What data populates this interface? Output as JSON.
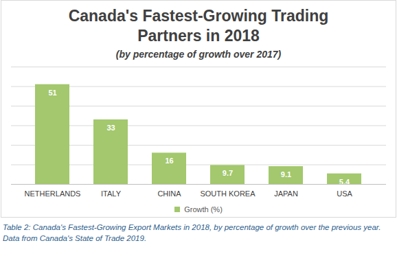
{
  "chart_data": {
    "type": "bar",
    "title": "Canada's Fastest-Growing Trading Partners in 2018",
    "subtitle": "(by percentage of growth over 2017)",
    "categories": [
      "NETHERLANDS",
      "ITALY",
      "CHINA",
      "SOUTH KOREA",
      "JAPAN",
      "USA"
    ],
    "series": [
      {
        "name": "Growth (%)",
        "color": "#a3c86d",
        "values": [
          51,
          33,
          16,
          9.7,
          9.1,
          5.4
        ]
      }
    ],
    "ylim": [
      0,
      60
    ],
    "yticks": [
      0,
      10,
      20,
      30,
      40,
      50,
      60
    ],
    "grid": true,
    "data_labels": true,
    "tick_labels": "x",
    "legend": "bottom",
    "caption": [
      "Table 2: Canada's Fastest-Growing Export Markets in 2018, by percentage of growth over the previous year.",
      "Data from Canada's State of Trade 2019."
    ]
  }
}
